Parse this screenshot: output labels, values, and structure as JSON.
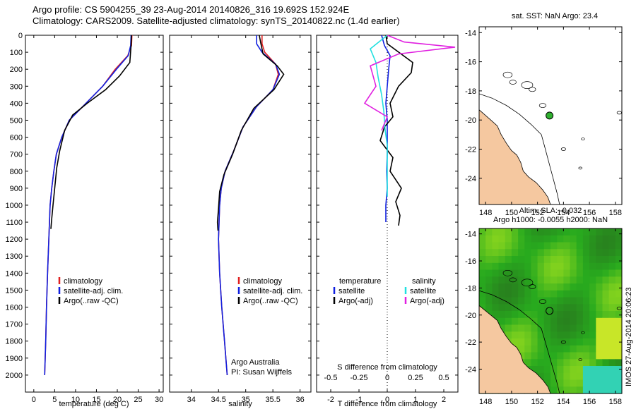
{
  "title_line1": "Argo profile: CS 5904255_39 23-Aug-2014 20140826_316 19.692S 152.924E",
  "title_line2": "Climatology: CARS2009. Satellite-adjusted climatology: synTS_20140822.nc (1.4d earlier)",
  "footer_stamp": "IMOS 27-Aug-2014 20:06:23",
  "colors": {
    "climatology": "#e02020",
    "satellite": "#1020e0",
    "argo": "#000000",
    "sat_salinity": "#20e0e0",
    "argo_salinity": "#e020e0",
    "land": "#f5c8a0",
    "dot": "#30b030"
  },
  "chart_data": [
    {
      "type": "line",
      "name": "temperature-profile",
      "xlabel": "temperature (deg C)",
      "ylabel": "",
      "xlim": [
        -2,
        31
      ],
      "ylim": [
        0,
        2100
      ],
      "xticks": [
        "0",
        "5",
        "10",
        "15",
        "20",
        "25",
        "30"
      ],
      "xtick_values": [
        0,
        5,
        10,
        15,
        20,
        25,
        30
      ],
      "yticks": [
        "0",
        "100",
        "200",
        "300",
        "400",
        "500",
        "600",
        "700",
        "800",
        "900",
        "1000",
        "1100",
        "1200",
        "1300",
        "1400",
        "1500",
        "1600",
        "1700",
        "1800",
        "1900",
        "2000"
      ],
      "legend": [
        "climatology",
        "satellite-adj. clim.",
        "Argo(..raw -QC)"
      ],
      "series": [
        {
          "name": "climatology",
          "color": "#e02020",
          "x": [
            23.5,
            23.4,
            22.5,
            19.5,
            16.5,
            12.5,
            8.5,
            6.7,
            5.4,
            4.8,
            4.3,
            3.9,
            3.6,
            3.3,
            3.05,
            2.85,
            2.6
          ],
          "y": [
            0,
            60,
            120,
            200,
            300,
            400,
            500,
            600,
            700,
            800,
            900,
            1000,
            1200,
            1400,
            1600,
            1800,
            2000
          ]
        },
        {
          "name": "satellite-adj. clim.",
          "color": "#1020e0",
          "x": [
            23.3,
            23.2,
            22.6,
            19.8,
            16.5,
            12.5,
            8.5,
            6.7,
            5.4,
            4.8,
            4.3,
            3.9,
            3.6,
            3.3,
            3.05,
            2.85,
            2.6
          ],
          "y": [
            0,
            60,
            120,
            200,
            300,
            400,
            500,
            600,
            700,
            800,
            900,
            1000,
            1200,
            1400,
            1600,
            1800,
            2000
          ]
        },
        {
          "name": "Argo(..raw -QC)",
          "color": "#000000",
          "x": [
            23.4,
            23.3,
            23.0,
            20.5,
            17.2,
            12.8,
            9.3,
            7.4,
            6.2,
            5.5,
            5.0,
            4.6,
            4.3,
            4.1
          ],
          "y": [
            0,
            60,
            160,
            240,
            320,
            400,
            470,
            560,
            680,
            780,
            900,
            1000,
            1080,
            1140
          ]
        }
      ]
    },
    {
      "type": "line",
      "name": "salinity-profile",
      "xlabel": "salinity",
      "xlim": [
        33.6,
        36.2
      ],
      "ylim": [
        0,
        2100
      ],
      "xticks": [
        "34",
        "34.5",
        "35",
        "35.5",
        "36"
      ],
      "xtick_values": [
        34,
        34.5,
        35,
        35.5,
        36
      ],
      "legend": [
        "climatology",
        "satellite-adj. clim.",
        "Argo(..raw -QC)"
      ],
      "annotation_lines": [
        "Argo Australia",
        "PI: Susan Wijffels"
      ],
      "series": [
        {
          "name": "climatology",
          "color": "#e02020",
          "x": [
            35.3,
            35.3,
            35.35,
            35.55,
            35.6,
            35.5,
            35.2,
            34.95,
            34.78,
            34.62,
            34.55,
            34.52,
            34.5,
            34.52,
            34.56,
            34.61,
            34.66
          ],
          "y": [
            0,
            50,
            100,
            170,
            230,
            320,
            420,
            540,
            680,
            800,
            900,
            1000,
            1200,
            1400,
            1600,
            1800,
            2000
          ]
        },
        {
          "name": "satellite-adj. clim.",
          "color": "#1020e0",
          "x": [
            35.2,
            35.2,
            35.3,
            35.55,
            35.62,
            35.5,
            35.2,
            34.95,
            34.78,
            34.62,
            34.55,
            34.52,
            34.5,
            34.52,
            34.56,
            34.61,
            34.66
          ],
          "y": [
            0,
            50,
            100,
            170,
            230,
            320,
            420,
            540,
            680,
            800,
            900,
            1000,
            1200,
            1400,
            1600,
            1800,
            2000
          ]
        },
        {
          "name": "Argo(..raw -QC)",
          "color": "#000000",
          "x": [
            35.25,
            35.28,
            35.32,
            35.58,
            35.7,
            35.52,
            35.15,
            34.92,
            34.76,
            34.6,
            34.52,
            34.5,
            34.48,
            34.49
          ],
          "y": [
            0,
            50,
            110,
            180,
            230,
            320,
            430,
            560,
            700,
            820,
            920,
            1020,
            1100,
            1150
          ]
        }
      ]
    },
    {
      "type": "line",
      "name": "difference-profile",
      "xlabel_top": "S difference from climatology",
      "xlabel": "T difference from climatology",
      "xlim": [
        -2.5,
        2.5
      ],
      "ylim": [
        0,
        2100
      ],
      "s_ticks": [
        "-0.5",
        "-0.25",
        "0",
        "0.25",
        "0.5"
      ],
      "s_tick_values": [
        -0.5,
        -0.25,
        0,
        0.25,
        0.5
      ],
      "t_ticks": [
        "-2",
        "-1",
        "0",
        "1",
        "2"
      ],
      "t_tick_values": [
        -2,
        -1,
        0,
        1,
        2
      ],
      "legend_temperature_title": "temperature",
      "legend_salinity_title": "salinity",
      "legend_satellite_t": "satellite",
      "legend_argo_t": "Argo(-adj)",
      "legend_satellite_s": "satellite",
      "legend_argo_s": "Argo(-adj)",
      "series": [
        {
          "name": "satellite temperature",
          "color": "#1020e0",
          "x": [
            -0.2,
            -0.1,
            0.1,
            0.05,
            0.0,
            -0.05,
            0.0,
            0.0,
            0.0,
            -0.02,
            0.0,
            -0.05,
            -0.05
          ],
          "y": [
            0,
            60,
            120,
            200,
            300,
            400,
            500,
            600,
            700,
            800,
            900,
            1000,
            1100
          ]
        },
        {
          "name": "Argo(-adj) temperature",
          "color": "#000000",
          "x": [
            -0.05,
            0.0,
            0.9,
            0.85,
            0.4,
            0.1,
            0.2,
            -0.1,
            -0.25,
            0.2,
            0.1,
            0.5,
            0.3,
            0.45,
            0.4
          ],
          "y": [
            0,
            50,
            160,
            220,
            300,
            400,
            480,
            540,
            620,
            720,
            800,
            900,
            980,
            1060,
            1120
          ]
        },
        {
          "name": "satellite salinity",
          "color": "#20e0e0",
          "x": [
            0.0,
            -0.15,
            -0.1,
            -0.08,
            -0.05,
            -0.03,
            -0.02,
            0.0,
            0.0,
            0.0,
            0.0
          ],
          "y": [
            0,
            80,
            160,
            250,
            350,
            450,
            550,
            650,
            750,
            850,
            950
          ]
        },
        {
          "name": "Argo(-adj) salinity",
          "color": "#e020e0",
          "x": [
            0.0,
            0.15,
            0.6,
            0.1,
            -0.15,
            -0.1,
            -0.2,
            0.0,
            -0.05
          ],
          "y": [
            0,
            40,
            70,
            110,
            180,
            300,
            400,
            480,
            560
          ]
        }
      ]
    },
    {
      "type": "map",
      "name": "sst-map",
      "title": "sat. SST: NaN Argo: 23.4",
      "xlim": [
        147.5,
        158.5
      ],
      "ylim": [
        -25.8,
        -13.6
      ],
      "xticks": [
        "148",
        "150",
        "152",
        "154",
        "156",
        "158"
      ],
      "xtick_values": [
        148,
        150,
        152,
        154,
        156,
        158
      ],
      "yticks": [
        "-14",
        "-16",
        "-18",
        "-20",
        "-22",
        "-24"
      ],
      "ytick_values": [
        -14,
        -16,
        -18,
        -20,
        -22,
        -24
      ],
      "argo_lon": 152.924,
      "argo_lat": -19.692
    },
    {
      "type": "heatmap",
      "name": "sla-map",
      "title_line1": "Altim. SLA: -0.032",
      "title_line2": "Argo h1000: -0.0055 h2000: NaN",
      "xlim": [
        147.5,
        158.5
      ],
      "ylim": [
        -25.8,
        -13.6
      ],
      "xticks": [
        "148",
        "150",
        "152",
        "154",
        "156",
        "158"
      ],
      "xtick_values": [
        148,
        150,
        152,
        154,
        156,
        158
      ],
      "yticks": [
        "-14",
        "-16",
        "-18",
        "-20",
        "-22",
        "-24"
      ],
      "ytick_values": [
        -14,
        -16,
        -18,
        -20,
        -22,
        -24
      ],
      "argo_lon": 152.924,
      "argo_lat": -19.692
    }
  ]
}
